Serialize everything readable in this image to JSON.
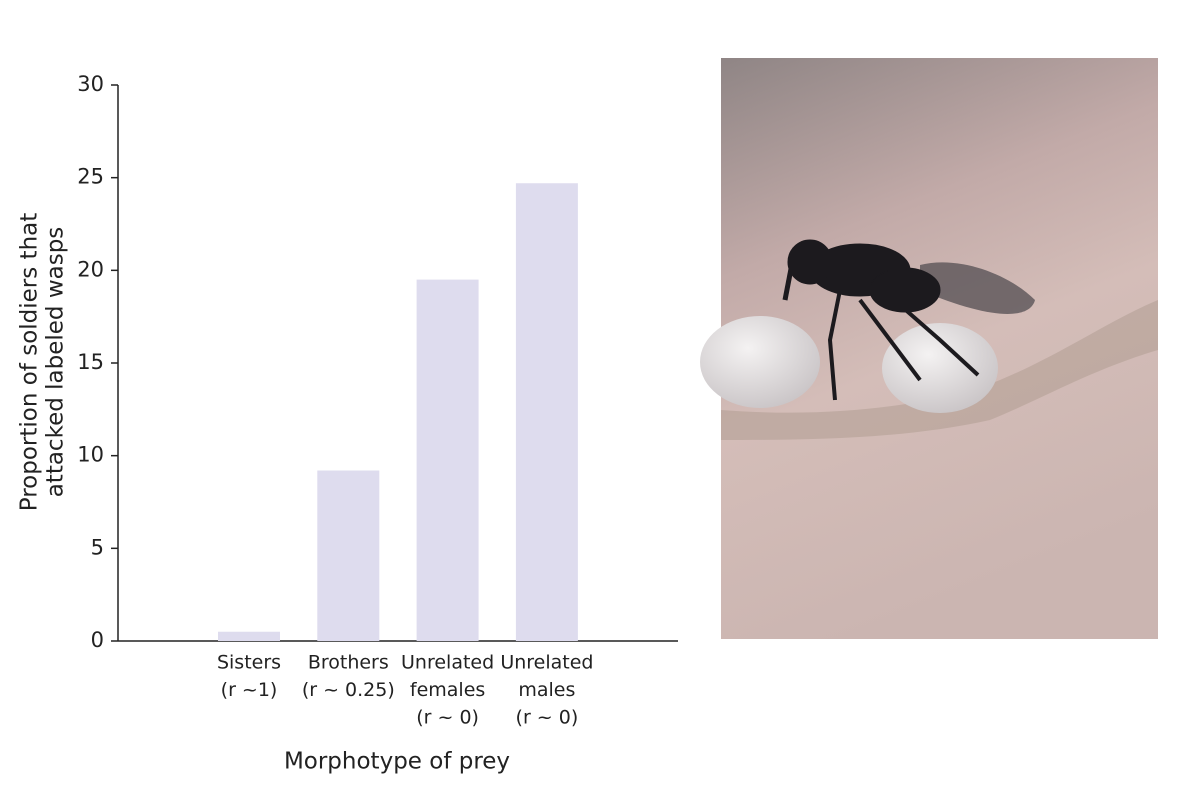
{
  "chart_data": {
    "type": "bar",
    "y_label": [
      "Proportion of soldiers that",
      "attacked labeled wasps"
    ],
    "x_label": "Morphotype of prey",
    "categories": [
      [
        "Sisters",
        "(r ~1)"
      ],
      [
        "Brothers",
        "(r ~ 0.25)"
      ],
      [
        "Unrelated",
        "females",
        "(r ~ 0)"
      ],
      [
        "Unrelated",
        "males",
        "(r ~ 0)"
      ]
    ],
    "values": [
      0.5,
      9.2,
      19.5,
      24.7
    ],
    "color": "#dedcee",
    "ylim": [
      0,
      30
    ],
    "yticks": [
      0,
      5,
      10,
      15,
      20,
      25,
      30
    ],
    "grid": false
  }
}
